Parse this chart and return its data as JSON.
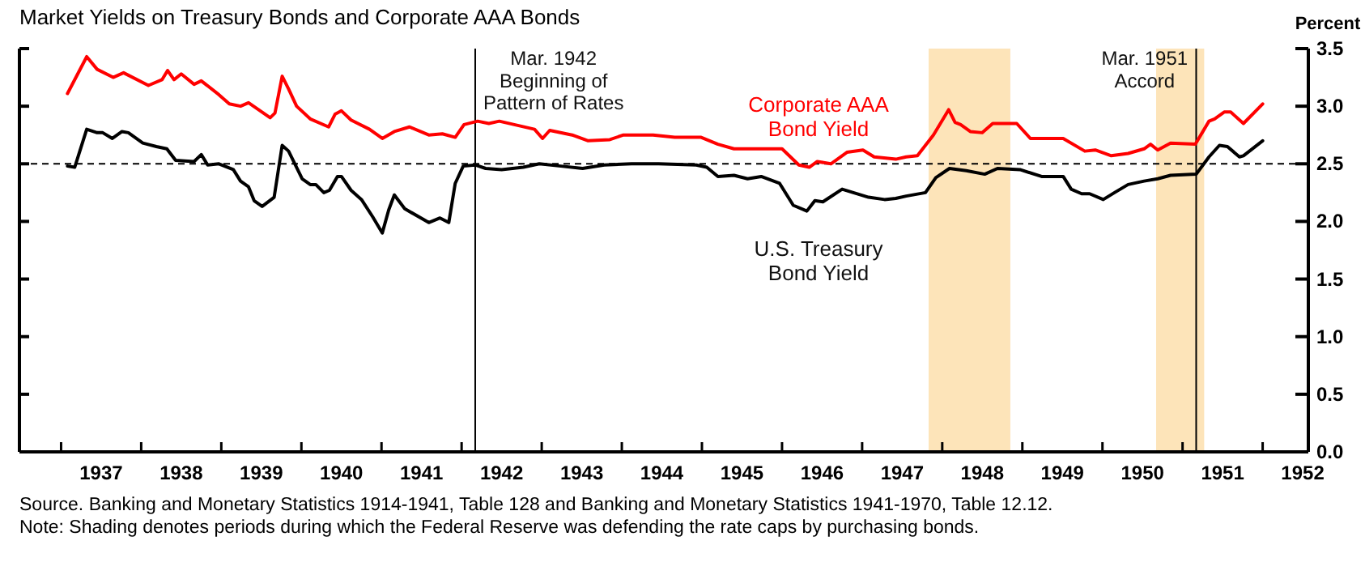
{
  "chart_data": {
    "type": "line",
    "title": "Market Yields on Treasury Bonds and Corporate AAA Bonds",
    "ylabel": "Percent",
    "xlim": [
      1936.48,
      1952.57
    ],
    "xticks": [
      {
        "value": 1937,
        "label": null
      },
      {
        "value": 1937.5,
        "label": "1937"
      },
      {
        "value": 1938,
        "label": null
      },
      {
        "value": 1938.5,
        "label": "1938"
      },
      {
        "value": 1939,
        "label": null
      },
      {
        "value": 1939.5,
        "label": "1939"
      },
      {
        "value": 1940,
        "label": null
      },
      {
        "value": 1940.5,
        "label": "1940"
      },
      {
        "value": 1941,
        "label": null
      },
      {
        "value": 1941.5,
        "label": "1941"
      },
      {
        "value": 1942,
        "label": null
      },
      {
        "value": 1942.5,
        "label": "1942"
      },
      {
        "value": 1943,
        "label": null
      },
      {
        "value": 1943.5,
        "label": "1943"
      },
      {
        "value": 1944,
        "label": null
      },
      {
        "value": 1944.5,
        "label": "1944"
      },
      {
        "value": 1945,
        "label": null
      },
      {
        "value": 1945.5,
        "label": "1945"
      },
      {
        "value": 1946,
        "label": null
      },
      {
        "value": 1946.5,
        "label": "1946"
      },
      {
        "value": 1947,
        "label": null
      },
      {
        "value": 1947.5,
        "label": "1947"
      },
      {
        "value": 1948,
        "label": null
      },
      {
        "value": 1948.5,
        "label": "1948"
      },
      {
        "value": 1949,
        "label": null
      },
      {
        "value": 1949.5,
        "label": "1949"
      },
      {
        "value": 1950,
        "label": null
      },
      {
        "value": 1950.5,
        "label": "1950"
      },
      {
        "value": 1951,
        "label": null
      },
      {
        "value": 1951.5,
        "label": "1951"
      },
      {
        "value": 1952,
        "label": null
      },
      {
        "value": 1952.5,
        "label": "1952"
      }
    ],
    "ylim": [
      0,
      3.5
    ],
    "yticks": [
      {
        "value": 0,
        "label": "0.0"
      },
      {
        "value": 0.5,
        "label": "0.5"
      },
      {
        "value": 1,
        "label": "1.0"
      },
      {
        "value": 1.5,
        "label": "1.5"
      },
      {
        "value": 2,
        "label": "2.0"
      },
      {
        "value": 2.5,
        "label": "2.5"
      },
      {
        "value": 3,
        "label": "3.0"
      },
      {
        "value": 3.5,
        "label": "3.5"
      }
    ],
    "series": [
      {
        "name": "Corporate AAA Bond Yield",
        "color": "#ff0000",
        "x": [
          1937.08,
          1937.32,
          1937.45,
          1937.65,
          1937.78,
          1938.09,
          1938.26,
          1938.33,
          1938.41,
          1938.5,
          1938.66,
          1938.75,
          1938.97,
          1939.1,
          1939.24,
          1939.34,
          1939.61,
          1939.67,
          1939.76,
          1939.84,
          1939.94,
          1940.11,
          1940.34,
          1940.42,
          1940.5,
          1940.62,
          1940.85,
          1941.01,
          1941.16,
          1941.35,
          1941.59,
          1941.76,
          1941.92,
          1942.03,
          1942.2,
          1942.34,
          1942.47,
          1942.91,
          1943.01,
          1943.1,
          1943.38,
          1943.58,
          1943.85,
          1944.02,
          1944.19,
          1944.39,
          1944.66,
          1944.99,
          1945.2,
          1945.4,
          1945.67,
          1946.0,
          1946.21,
          1946.34,
          1946.44,
          1946.61,
          1946.81,
          1947.01,
          1947.15,
          1947.42,
          1947.55,
          1947.69,
          1947.89,
          1948.08,
          1948.16,
          1948.23,
          1948.35,
          1948.5,
          1948.63,
          1948.93,
          1949.1,
          1949.51,
          1949.78,
          1949.91,
          1950.11,
          1950.32,
          1950.52,
          1950.6,
          1950.69,
          1950.85,
          1951.16,
          1951.33,
          1951.4,
          1951.52,
          1951.6,
          1951.76,
          1952.0
        ],
        "values": [
          3.11,
          3.43,
          3.32,
          3.25,
          3.29,
          3.18,
          3.23,
          3.31,
          3.23,
          3.28,
          3.19,
          3.22,
          3.1,
          3.02,
          3.0,
          3.03,
          2.9,
          2.94,
          3.26,
          3.15,
          3.0,
          2.89,
          2.82,
          2.93,
          2.96,
          2.88,
          2.8,
          2.72,
          2.78,
          2.82,
          2.75,
          2.76,
          2.73,
          2.84,
          2.87,
          2.85,
          2.87,
          2.8,
          2.72,
          2.79,
          2.75,
          2.7,
          2.71,
          2.75,
          2.75,
          2.75,
          2.73,
          2.73,
          2.67,
          2.63,
          2.63,
          2.63,
          2.49,
          2.47,
          2.52,
          2.5,
          2.6,
          2.62,
          2.56,
          2.54,
          2.56,
          2.57,
          2.75,
          2.97,
          2.86,
          2.84,
          2.78,
          2.77,
          2.85,
          2.85,
          2.72,
          2.72,
          2.61,
          2.62,
          2.57,
          2.59,
          2.63,
          2.67,
          2.62,
          2.68,
          2.67,
          2.87,
          2.89,
          2.95,
          2.95,
          2.85,
          3.02
        ]
      },
      {
        "name": "U.S. Treasury Bond Yield",
        "color": "#000000",
        "x": [
          1937.08,
          1937.17,
          1937.32,
          1937.45,
          1937.52,
          1937.64,
          1937.76,
          1937.84,
          1938.02,
          1938.19,
          1938.32,
          1938.43,
          1938.66,
          1938.75,
          1938.83,
          1938.97,
          1939.15,
          1939.24,
          1939.34,
          1939.41,
          1939.51,
          1939.66,
          1939.76,
          1939.84,
          1940.01,
          1940.11,
          1940.18,
          1940.28,
          1940.35,
          1940.45,
          1940.5,
          1940.62,
          1940.75,
          1940.89,
          1941.01,
          1941.09,
          1941.16,
          1941.29,
          1941.59,
          1941.73,
          1941.84,
          1941.92,
          1942.02,
          1942.17,
          1942.3,
          1942.5,
          1942.77,
          1942.97,
          1943.24,
          1943.51,
          1943.78,
          1944.12,
          1944.46,
          1944.93,
          1945.06,
          1945.2,
          1945.4,
          1945.57,
          1945.74,
          1945.97,
          1946.14,
          1946.31,
          1946.41,
          1946.51,
          1946.75,
          1947.08,
          1947.28,
          1947.42,
          1947.55,
          1947.79,
          1947.92,
          1948.09,
          1948.3,
          1948.53,
          1948.69,
          1948.97,
          1949.24,
          1949.51,
          1949.61,
          1949.74,
          1949.84,
          1950.01,
          1950.15,
          1950.32,
          1950.52,
          1950.69,
          1950.85,
          1951.17,
          1951.33,
          1951.46,
          1951.56,
          1951.71,
          1951.76,
          1952.0
        ],
        "values": [
          2.48,
          2.47,
          2.8,
          2.77,
          2.77,
          2.72,
          2.78,
          2.77,
          2.68,
          2.65,
          2.63,
          2.53,
          2.52,
          2.58,
          2.49,
          2.5,
          2.45,
          2.35,
          2.3,
          2.18,
          2.13,
          2.21,
          2.66,
          2.61,
          2.37,
          2.32,
          2.32,
          2.25,
          2.27,
          2.39,
          2.39,
          2.27,
          2.19,
          2.04,
          1.9,
          2.1,
          2.23,
          2.11,
          1.99,
          2.03,
          1.99,
          2.33,
          2.48,
          2.49,
          2.46,
          2.45,
          2.47,
          2.5,
          2.48,
          2.46,
          2.49,
          2.5,
          2.5,
          2.49,
          2.47,
          2.39,
          2.4,
          2.37,
          2.39,
          2.33,
          2.14,
          2.09,
          2.18,
          2.17,
          2.28,
          2.21,
          2.19,
          2.2,
          2.22,
          2.25,
          2.38,
          2.46,
          2.44,
          2.41,
          2.46,
          2.45,
          2.39,
          2.39,
          2.28,
          2.24,
          2.24,
          2.19,
          2.25,
          2.32,
          2.35,
          2.37,
          2.4,
          2.41,
          2.56,
          2.66,
          2.65,
          2.56,
          2.57,
          2.7
        ]
      }
    ],
    "ref_lines": [
      {
        "axis": "y",
        "value": 2.5,
        "line_style": "dashed",
        "color": "#000000"
      },
      {
        "axis": "x",
        "value": 1942.17,
        "label": "Mar. 1942 Beginning of Pattern of Rates",
        "color": "#000000"
      },
      {
        "axis": "x",
        "value": 1951.17,
        "label": "Mar. 1951 Accord",
        "color": "#000000"
      }
    ],
    "bands": [
      {
        "axis": "x",
        "from": 1947.83,
        "to": 1948.85,
        "color": "#fde4b9"
      },
      {
        "axis": "x",
        "from": 1950.67,
        "to": 1951.27,
        "color": "#fde4b9"
      }
    ],
    "annotations": [
      "Source. Banking and Monetary Statistics 1914-1941, Table 128 and Banking and Monetary Statistics 1941-1970, Table 12.12.",
      "Note: Shading denotes periods during which the Federal Reserve was defending the rate caps by purchasing bonds."
    ],
    "grid": false,
    "line_style": "solid",
    "marker": "none"
  }
}
